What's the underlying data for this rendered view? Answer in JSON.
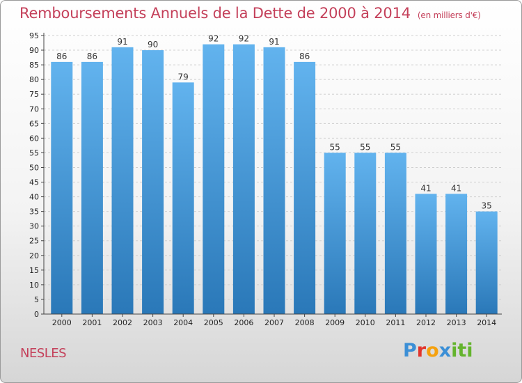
{
  "header": {
    "title": "Remboursements Annuels de la Dette de 2000 à 2014",
    "unit": "(en milliers d'€)"
  },
  "footer": {
    "commune": "NESLES",
    "logo_text": "Proxiti"
  },
  "colors": {
    "title": "#c4405a",
    "bar_top": "#62b3ee",
    "bar_bottom": "#2a78b8"
  },
  "chart_data": {
    "type": "bar",
    "title": "Remboursements Annuels de la Dette de 2000 à 2014",
    "subtitle": "(en milliers d'€)",
    "xlabel": "",
    "ylabel": "",
    "categories": [
      "2000",
      "2001",
      "2002",
      "2003",
      "2004",
      "2005",
      "2006",
      "2007",
      "2008",
      "2009",
      "2010",
      "2011",
      "2012",
      "2013",
      "2014"
    ],
    "values": [
      86,
      86,
      91,
      90,
      79,
      92,
      92,
      91,
      86,
      55,
      55,
      55,
      41,
      41,
      35
    ],
    "ylim": [
      0,
      95
    ],
    "yticks": [
      0,
      5,
      10,
      15,
      20,
      25,
      30,
      35,
      40,
      45,
      50,
      55,
      60,
      65,
      70,
      75,
      80,
      85,
      90,
      95
    ],
    "grid": true,
    "legend": "none"
  }
}
